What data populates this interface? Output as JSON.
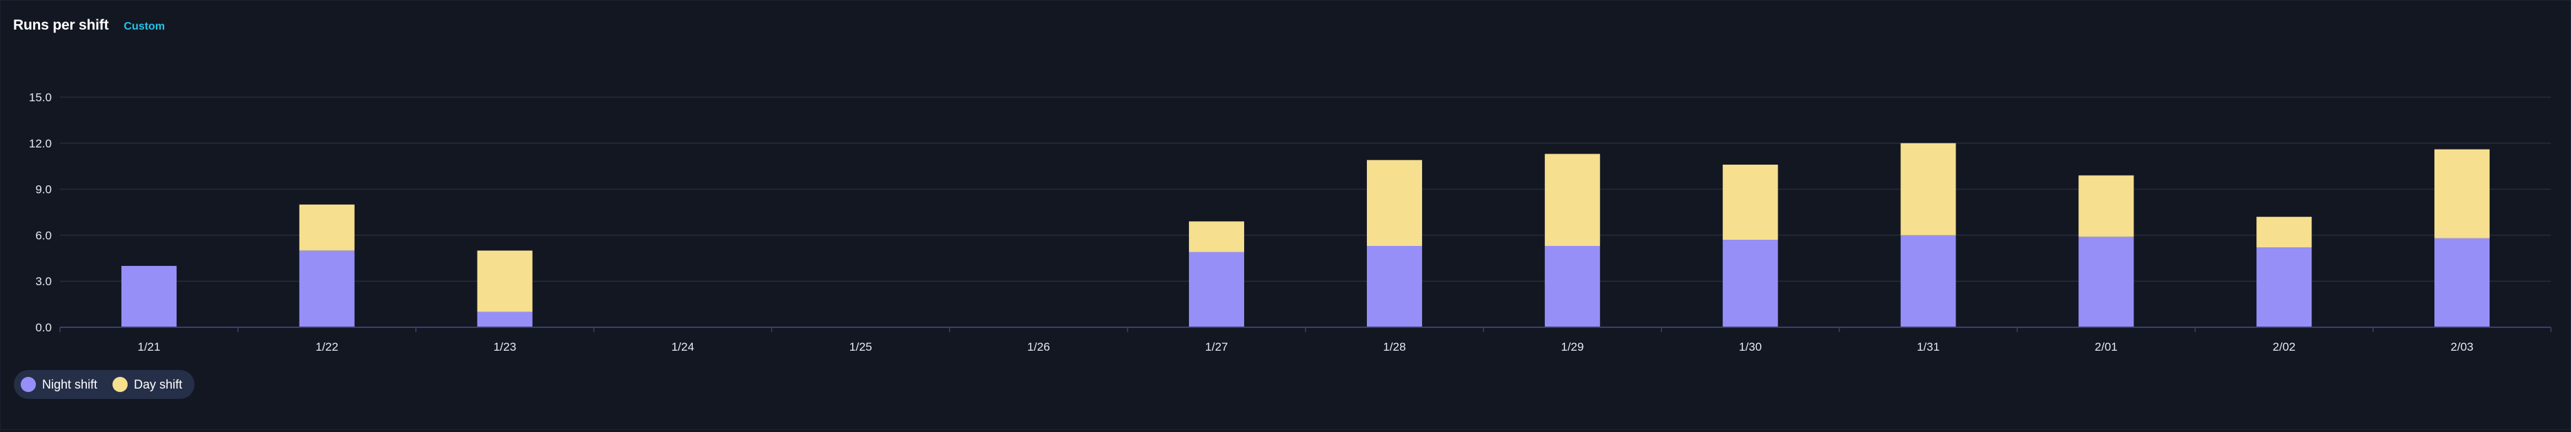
{
  "header": {
    "title": "Runs per shift",
    "badge": "Custom"
  },
  "chart_data": {
    "type": "bar",
    "stacked": true,
    "title": "Runs per shift",
    "xlabel": "",
    "ylabel": "",
    "categories": [
      "1/21",
      "1/22",
      "1/23",
      "1/24",
      "1/25",
      "1/26",
      "1/27",
      "1/28",
      "1/29",
      "1/30",
      "1/31",
      "2/01",
      "2/02",
      "2/03"
    ],
    "series": [
      {
        "name": "Night shift",
        "color": "#978ff8",
        "values": [
          4,
          5,
          1,
          0,
          0,
          0,
          4.9,
          5.3,
          5.3,
          5.7,
          6,
          5.9,
          5.2,
          5.8
        ]
      },
      {
        "name": "Day shift",
        "color": "#f6df8e",
        "values": [
          0,
          3,
          4,
          0,
          0,
          0,
          2,
          5.6,
          6,
          4.9,
          6,
          4,
          2,
          5.8
        ]
      }
    ],
    "ylim": [
      0,
      15
    ],
    "yticks": [
      "0.0",
      "3.0",
      "6.0",
      "9.0",
      "12.0",
      "15.0"
    ],
    "grid": true,
    "legend": "bottom-left"
  }
}
